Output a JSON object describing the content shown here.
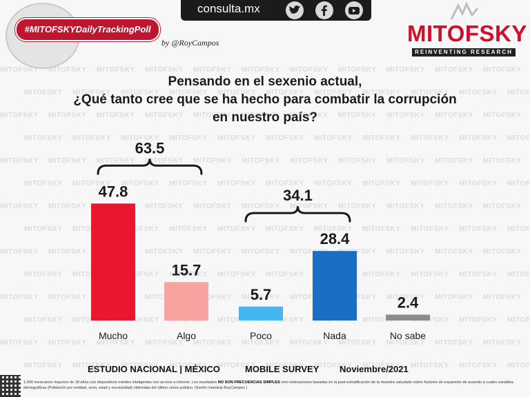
{
  "header": {
    "hashtag": "#MITOFSKYDailyTrackingPoll",
    "byline": "by @RoyCampos",
    "site": "consulta.mx",
    "social_icons": [
      "twitter-icon",
      "facebook-icon",
      "youtube-icon"
    ]
  },
  "brand": {
    "name": "MITOFSKY",
    "tagline": "REINVENTING RESEARCH",
    "watermark": "MITOFSKY"
  },
  "colors": {
    "brand_red": "#d0102a",
    "dark": "#1b1b1b"
  },
  "chart_data": {
    "type": "bar",
    "title": "Pensando en el sexenio actual, ¿Qué tanto cree que se ha hecho para combatir la corrupción en nuestro país?",
    "title_lines": [
      "Pensando en el sexenio actual,",
      "¿Qué tanto cree que se ha hecho para combatir la corrupción",
      "en nuestro país?"
    ],
    "categories": [
      "Mucho",
      "Algo",
      "Poco",
      "Nada",
      "No sabe"
    ],
    "values": [
      47.8,
      15.7,
      5.7,
      28.4,
      2.4
    ],
    "value_labels": [
      "47.8",
      "15.7",
      "5.7",
      "28.4",
      "2.4"
    ],
    "bar_colors": [
      "#e8172d",
      "#f7a3a0",
      "#45b7f0",
      "#1a6fc4",
      "#8c8c8c"
    ],
    "groups": [
      {
        "label": "63.5",
        "from": 0,
        "to": 1,
        "value": 63.5
      },
      {
        "label": "34.1",
        "from": 2,
        "to": 3,
        "value": 34.1
      }
    ],
    "ylim": [
      0,
      50
    ],
    "xlabel": "",
    "ylabel": ""
  },
  "footer": {
    "study": "ESTUDIO NACIONAL  |  MÉXICO",
    "method": "MOBILE SURVEY",
    "date": "Noviembre/2021",
    "note_part1": "1,000 mexicanos mayores de 18 años con dispositivos móviles inteligentes con acceso a internet. Los resultados",
    "note_bold": "NO SON FRECUENCIAS SIMPLES",
    "note_part2": "sino estimaciones basadas en la post-estratificación de la muestra calculado sobre factores de expansión de acuerdo a cuatro variables demográficas (Población por entidad, sexo, edad y escolaridad) obtenidas del último censo público. Diseño muestral",
    "note_sign": "RoyCampos"
  }
}
